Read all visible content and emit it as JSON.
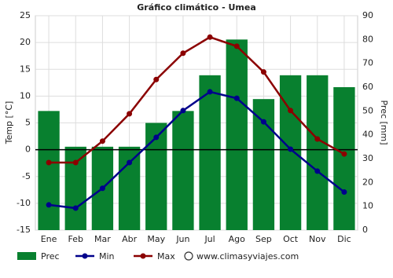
{
  "chart_data": {
    "type": "bar-line",
    "title": "Gráfico climático - Umea",
    "categories": [
      "Ene",
      "Feb",
      "Mar",
      "Abr",
      "May",
      "Jun",
      "Jul",
      "Ago",
      "Sep",
      "Oct",
      "Nov",
      "Dic"
    ],
    "ylabel": "Temp [°C]",
    "y2label": "Prec [mm]",
    "ylim": [
      -15,
      25
    ],
    "yticks": [
      -15,
      -10,
      -5,
      0,
      5,
      10,
      15,
      20,
      25
    ],
    "y2lim": [
      0,
      90
    ],
    "y2ticks": [
      0,
      10,
      20,
      30,
      40,
      50,
      60,
      70,
      80,
      90
    ],
    "grid": true,
    "series": [
      {
        "name": "Prec",
        "type": "bar",
        "axis": "y2",
        "color": "#08802f",
        "values": [
          50,
          35,
          35,
          35,
          45,
          50,
          65,
          80,
          55,
          65,
          65,
          60
        ]
      },
      {
        "name": "Min",
        "type": "line",
        "color": "#00008b",
        "values": [
          -10.3,
          -10.9,
          -7.2,
          -2.4,
          2.3,
          7.3,
          10.8,
          9.6,
          5.2,
          0.1,
          -4,
          -7.9
        ]
      },
      {
        "name": "Max",
        "type": "line",
        "color": "#8b0000",
        "values": [
          -2.4,
          -2.4,
          1.6,
          6.7,
          13.1,
          18,
          21,
          19.3,
          14.5,
          7.3,
          2,
          -0.8
        ]
      }
    ],
    "source": "www.climasyviajes.com"
  }
}
